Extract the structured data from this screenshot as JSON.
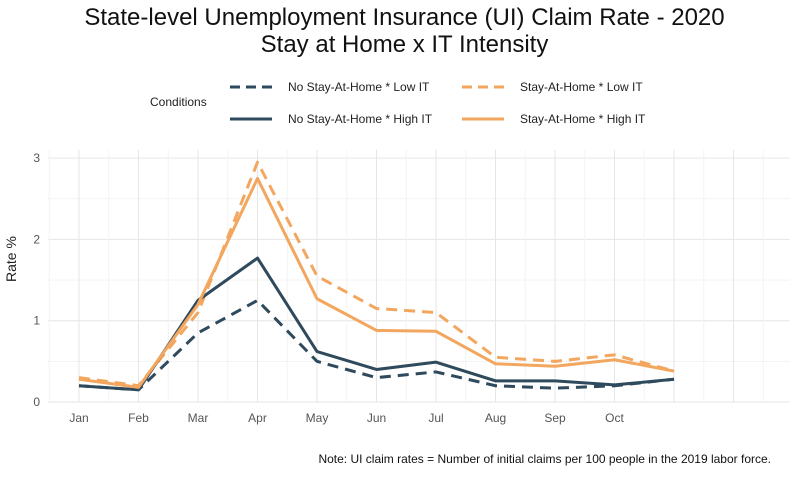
{
  "chart_data": {
    "type": "line",
    "title": "State-level Unemployment Insurance (UI) Claim Rate - 2020",
    "subtitle": "Stay at Home x IT Intensity",
    "ylabel": "Rate %",
    "xlabel": "",
    "x_tick_labels": [
      "Jan",
      "Feb",
      "Mar",
      "Apr",
      "May",
      "Jun",
      "Jul",
      "Aug",
      "Sep",
      "Oct"
    ],
    "y_ticks": [
      0,
      1,
      2,
      3
    ],
    "ylim": [
      0,
      3.1
    ],
    "grid": true,
    "legend_title": "Conditions",
    "legend_position": "top",
    "note": "Note: UI claim rates =  Number of initial claims per 100 people in the 2019 labor force.",
    "colors": {
      "dark": "#2e4a5c",
      "orange": "#f2a65e"
    },
    "x": [
      1,
      2,
      3,
      4,
      5,
      6,
      7,
      8,
      9,
      10,
      11
    ],
    "series": [
      {
        "name": "No Stay-At-Home * Low IT",
        "color": "#2e4a5c",
        "dash": true,
        "values": [
          0.2,
          0.15,
          0.85,
          1.25,
          0.5,
          0.3,
          0.37,
          0.2,
          0.17,
          0.2,
          0.28
        ]
      },
      {
        "name": "Stay-At-Home * Low IT",
        "color": "#f2a65e",
        "dash": true,
        "values": [
          0.3,
          0.2,
          1.1,
          2.95,
          1.55,
          1.15,
          1.1,
          0.55,
          0.5,
          0.58,
          0.38
        ]
      },
      {
        "name": "No Stay-At-Home * High IT",
        "color": "#2e4a5c",
        "dash": false,
        "values": [
          0.2,
          0.15,
          1.25,
          1.77,
          0.62,
          0.4,
          0.49,
          0.26,
          0.26,
          0.21,
          0.28
        ]
      },
      {
        "name": "Stay-At-Home * High IT",
        "color": "#f2a65e",
        "dash": false,
        "values": [
          0.28,
          0.18,
          1.2,
          2.75,
          1.27,
          0.88,
          0.87,
          0.47,
          0.44,
          0.52,
          0.38
        ]
      }
    ]
  }
}
